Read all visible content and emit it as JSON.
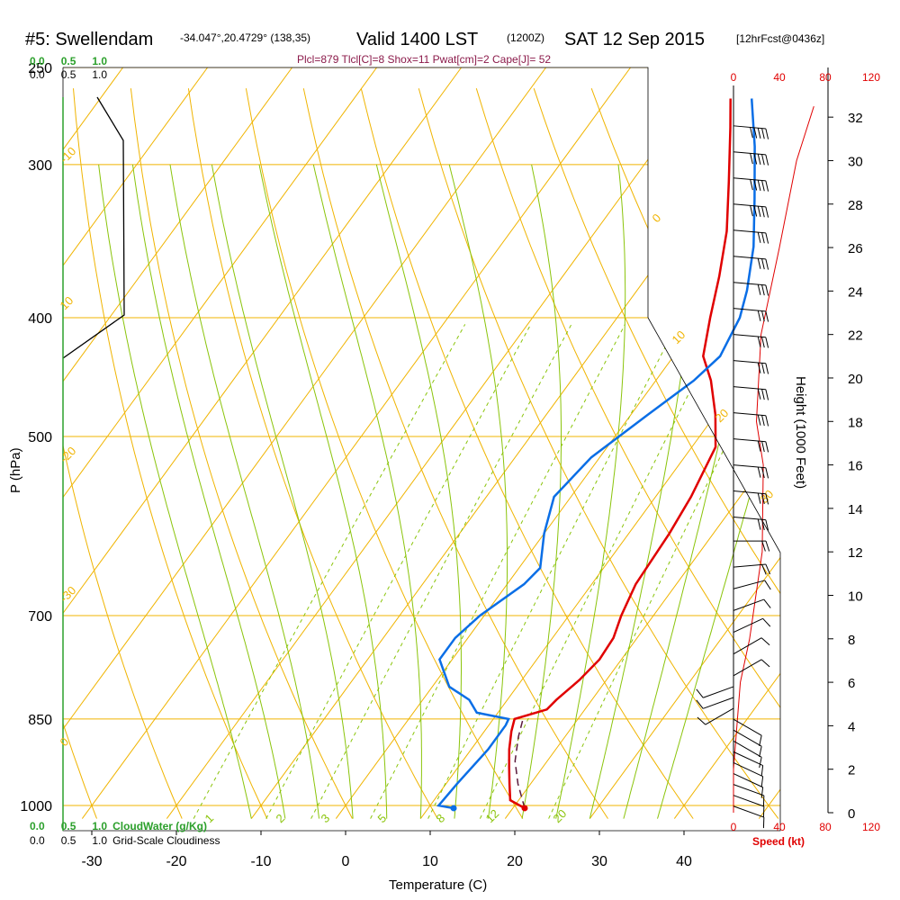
{
  "title": {
    "station": "#5: Swellendam",
    "coords": "-34.047°,20.4729° (138,35)",
    "valid": "Valid 1400 LST",
    "utc": "(1200Z)",
    "date": "SAT 12 Sep 2015",
    "forecast": "[12hrFcst@0436z]"
  },
  "indices": "Plcl=879 Tlcl[C]=8 Shox=11 Pwat[cm]=2 Cape[J]= 52",
  "chart_data": {
    "type": "line",
    "xlabel": "Temperature (C)",
    "ylabel": "P (hPa)",
    "y2label": "Height (1000 Feet)",
    "xlim": [
      -35,
      45
    ],
    "ylim": [
      1025,
      250
    ],
    "x_ticks": [
      "-30",
      "-20",
      "-10",
      "0",
      "10",
      "20",
      "30",
      "40"
    ],
    "x_tick_values": [
      -30,
      -20,
      -10,
      0,
      10,
      20,
      30,
      40
    ],
    "p_ticks": [
      "250",
      "300",
      "400",
      "500",
      "700",
      "850",
      "1000"
    ],
    "p_tick_values": [
      250,
      300,
      400,
      500,
      700,
      850,
      1000
    ],
    "height_ticks": [
      "0",
      "2",
      "4",
      "6",
      "8",
      "10",
      "12",
      "14",
      "16",
      "18",
      "20",
      "22",
      "24",
      "26",
      "28",
      "30",
      "32"
    ],
    "dry_adiabat_labels": [
      "0",
      "10",
      "20",
      "30",
      "-10",
      "-20",
      "-30",
      "0",
      "10"
    ],
    "moist_labels": [
      "1",
      "2",
      "3",
      "5",
      "8",
      "12",
      "20"
    ],
    "wind_speed_ticks": [
      "0",
      "40",
      "80",
      "120"
    ],
    "wind_speed_label": "Speed (kt)",
    "cloudwater_scale": [
      "0.0",
      "0.5",
      "1.0"
    ],
    "cloudwater_label": "CloudWater (g/Kg)",
    "cloudiness_scale": [
      "0.0",
      "0.5",
      "1.0"
    ],
    "cloudiness_label": "Grid-Scale Cloudiness",
    "series": [
      {
        "color": "#e00000",
        "points": [
          [
            1005,
            21.4
          ],
          [
            990,
            19.0
          ],
          [
            960,
            17.5
          ],
          [
            930,
            16.0
          ],
          [
            900,
            14.5
          ],
          [
            870,
            13.2
          ],
          [
            850,
            12.5
          ],
          [
            835,
            15.5
          ],
          [
            820,
            15.8
          ],
          [
            790,
            16.8
          ],
          [
            760,
            17.4
          ],
          [
            730,
            17.2
          ],
          [
            700,
            16.2
          ],
          [
            660,
            15.2
          ],
          [
            600,
            14.8
          ],
          [
            560,
            14.2
          ],
          [
            510,
            12.8
          ],
          [
            480,
            10.0
          ],
          [
            450,
            6.5
          ],
          [
            430,
            3.5
          ],
          [
            400,
            1.0
          ],
          [
            370,
            -1.5
          ],
          [
            340,
            -4.5
          ],
          [
            310,
            -8.5
          ],
          [
            280,
            -13.0
          ],
          [
            265,
            -15.5
          ]
        ]
      },
      {
        "color": "#0a6ee6",
        "points": [
          [
            1005,
            13.0
          ],
          [
            1000,
            11.0
          ],
          [
            960,
            11.3
          ],
          [
            900,
            12.0
          ],
          [
            860,
            12.0
          ],
          [
            850,
            11.8
          ],
          [
            840,
            7.5
          ],
          [
            820,
            5.5
          ],
          [
            800,
            2.0
          ],
          [
            760,
            -1.5
          ],
          [
            730,
            -1.5
          ],
          [
            700,
            -0.5
          ],
          [
            660,
            2.0
          ],
          [
            640,
            2.5
          ],
          [
            600,
            0.0
          ],
          [
            560,
            -2.0
          ],
          [
            520,
            -1.0
          ],
          [
            480,
            2.0
          ],
          [
            450,
            4.5
          ],
          [
            430,
            5.5
          ],
          [
            400,
            4.5
          ],
          [
            380,
            3.0
          ],
          [
            350,
            0.0
          ],
          [
            320,
            -4.0
          ],
          [
            290,
            -8.5
          ],
          [
            265,
            -13.0
          ]
        ]
      },
      {
        "color": "#5a1a3c",
        "dashed": true,
        "points": [
          [
            1005,
            21.4
          ],
          [
            960,
            18.5
          ],
          [
            920,
            16.2
          ],
          [
            879,
            14.5
          ],
          [
            850,
            13.5
          ]
        ]
      }
    ],
    "height_profile": [
      [
        0.0,
        0.0
      ],
      [
        2.0,
        0.0
      ],
      [
        6.0,
        6.0
      ],
      [
        8.0,
        14.0
      ],
      [
        12.0,
        25.0
      ],
      [
        16.0,
        26.0
      ],
      [
        18.0,
        20.0
      ],
      [
        22.0,
        24.0
      ],
      [
        26.0,
        40.0
      ],
      [
        30.0,
        55.0
      ],
      [
        32.5,
        70.0
      ]
    ],
    "wind_barbs": [
      {
        "h": 0.3,
        "dir": 110,
        "spd": 10
      },
      {
        "h": 0.8,
        "dir": 110,
        "spd": 10
      },
      {
        "h": 1.3,
        "dir": 110,
        "spd": 10
      },
      {
        "h": 1.8,
        "dir": 115,
        "spd": 10
      },
      {
        "h": 2.3,
        "dir": 115,
        "spd": 10
      },
      {
        "h": 2.8,
        "dir": 115,
        "spd": 10
      },
      {
        "h": 3.3,
        "dir": 120,
        "spd": 10
      },
      {
        "h": 3.8,
        "dir": 120,
        "spd": 10
      },
      {
        "h": 4.3,
        "dir": 120,
        "spd": 10
      },
      {
        "h": 4.8,
        "dir": 240,
        "spd": 10
      },
      {
        "h": 5.3,
        "dir": 250,
        "spd": 10
      },
      {
        "h": 5.8,
        "dir": 250,
        "spd": 10
      },
      {
        "h": 6.3,
        "dir": 60,
        "spd": 5
      },
      {
        "h": 7.3,
        "dir": 60,
        "spd": 5
      },
      {
        "h": 8.3,
        "dir": 65,
        "spd": 5
      },
      {
        "h": 9.3,
        "dir": 70,
        "spd": 5
      },
      {
        "h": 10.3,
        "dir": 75,
        "spd": 5
      },
      {
        "h": 11.3,
        "dir": 85,
        "spd": 20
      },
      {
        "h": 12.5,
        "dir": 90,
        "spd": 20
      },
      {
        "h": 13.6,
        "dir": 95,
        "spd": 25
      },
      {
        "h": 14.8,
        "dir": 95,
        "spd": 25
      },
      {
        "h": 16.0,
        "dir": 95,
        "spd": 25
      },
      {
        "h": 17.2,
        "dir": 95,
        "spd": 25
      },
      {
        "h": 18.4,
        "dir": 95,
        "spd": 25
      },
      {
        "h": 19.6,
        "dir": 95,
        "spd": 25
      },
      {
        "h": 20.8,
        "dir": 95,
        "spd": 25
      },
      {
        "h": 22.0,
        "dir": 95,
        "spd": 25
      },
      {
        "h": 23.2,
        "dir": 95,
        "spd": 25
      },
      {
        "h": 24.4,
        "dir": 95,
        "spd": 25
      },
      {
        "h": 25.6,
        "dir": 95,
        "spd": 25
      },
      {
        "h": 26.8,
        "dir": 95,
        "spd": 25
      },
      {
        "h": 28.0,
        "dir": 95,
        "spd": 55
      },
      {
        "h": 29.2,
        "dir": 95,
        "spd": 55
      },
      {
        "h": 30.4,
        "dir": 95,
        "spd": 55
      },
      {
        "h": 31.6,
        "dir": 95,
        "spd": 55
      }
    ],
    "cloudiness_profile": [
      [
        250,
        0.2
      ],
      [
        300,
        0.35
      ],
      [
        400,
        0.36
      ],
      [
        430,
        0.0
      ]
    ],
    "colors": {
      "isobar": "#f0b400",
      "dry_adiabat": "#f0b400",
      "moist_adiabat": "#8ac40a",
      "mixing_ratio": "#8ac40a",
      "cloudwater": "#2ca02c",
      "wind_profile": "#e00000"
    }
  }
}
